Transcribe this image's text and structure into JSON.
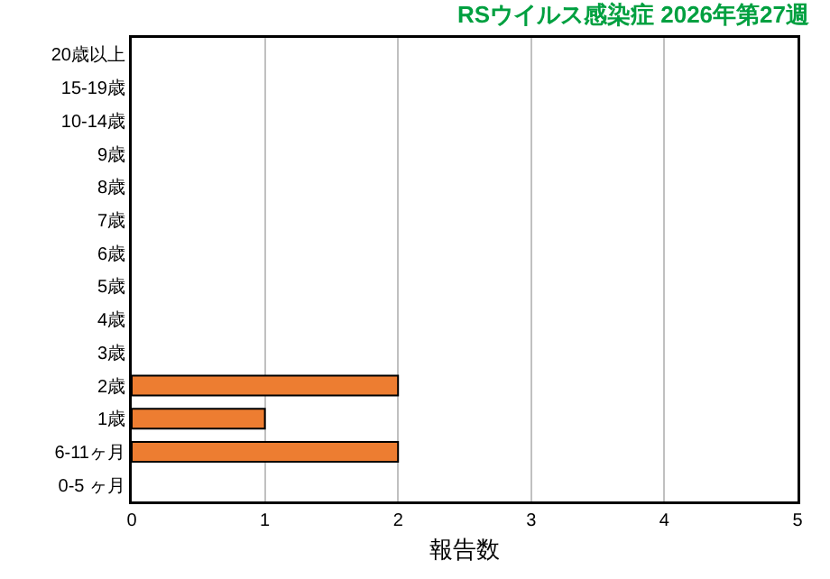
{
  "chart_data": {
    "type": "bar",
    "orientation": "horizontal",
    "title": "RSウイルス感染症 2026年第27週",
    "xlabel": "報告数",
    "categories": [
      "20歳以上",
      "15-19歳",
      "10-14歳",
      "9歳",
      "8歳",
      "7歳",
      "6歳",
      "5歳",
      "4歳",
      "3歳",
      "2歳",
      "1歳",
      "6-11ヶ月",
      "0-5 ヶ月"
    ],
    "values": [
      0,
      0,
      0,
      0,
      0,
      0,
      0,
      0,
      0,
      0,
      2,
      1,
      2,
      0
    ],
    "color": "#ed7d31",
    "xlim": [
      0,
      5
    ],
    "xticks": [
      0,
      1,
      2,
      3,
      4,
      5
    ],
    "grid": "x"
  }
}
